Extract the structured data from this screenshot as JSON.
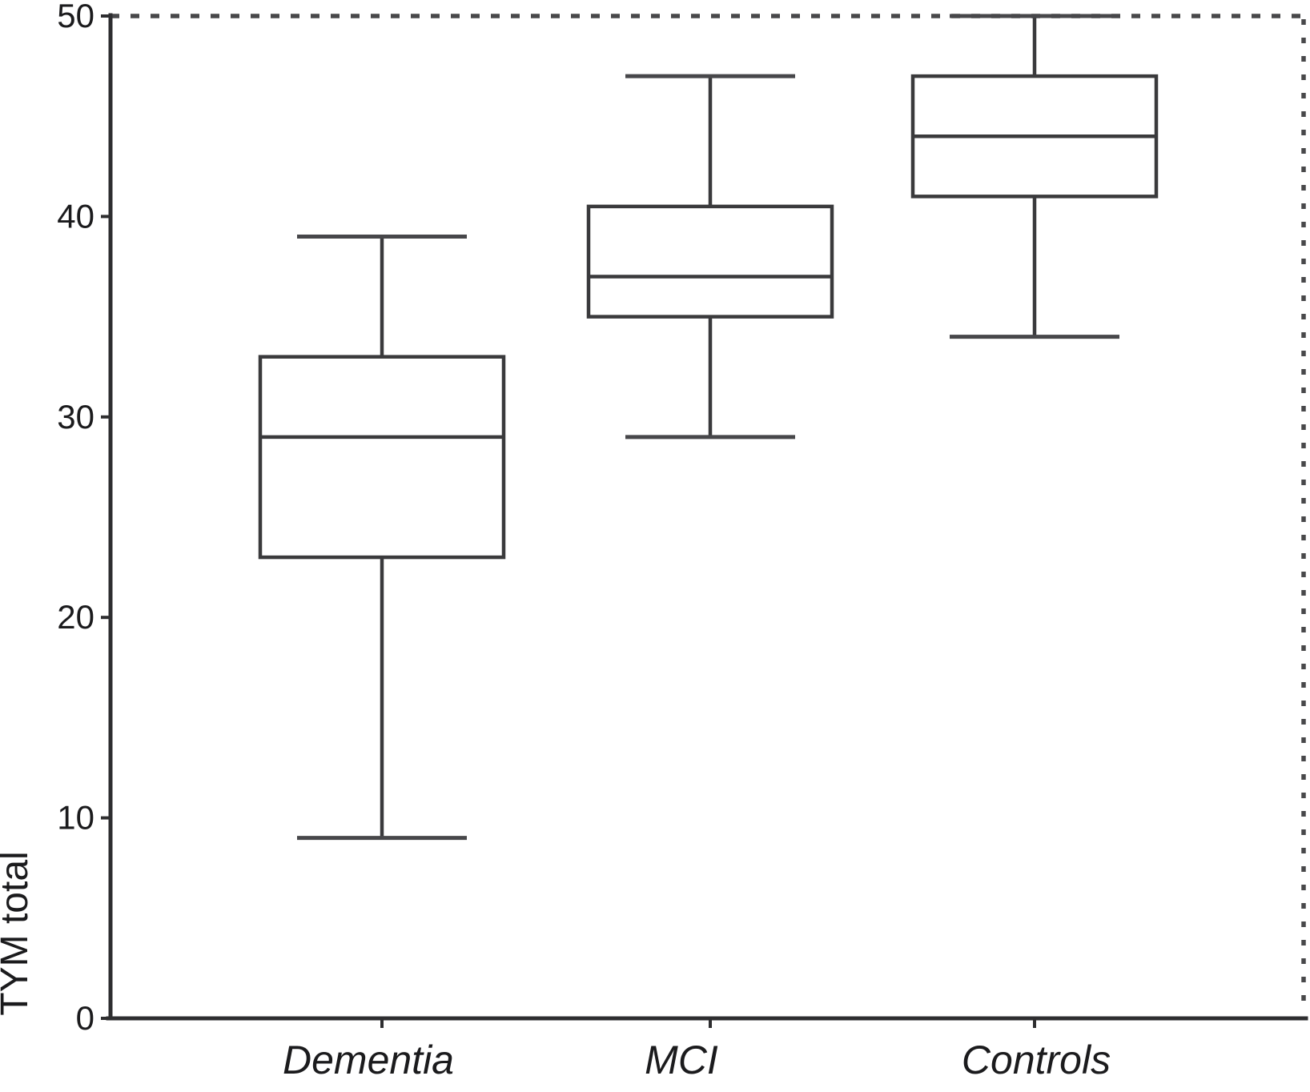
{
  "chart_data": {
    "type": "boxplot",
    "title": "",
    "ylabel": "TYM total",
    "xlabel": "",
    "ylim": [
      0,
      50
    ],
    "yticks": [
      0,
      10,
      20,
      30,
      40,
      50
    ],
    "categories": [
      "Dementia",
      "MCI",
      "Controls"
    ],
    "series": [
      {
        "name": "Dementia",
        "whisker_low": 9,
        "q1": 23,
        "median": 29,
        "q3": 33,
        "whisker_high": 39
      },
      {
        "name": "MCI",
        "whisker_low": 29,
        "q1": 35,
        "median": 37,
        "q3": 40.5,
        "whisker_high": 47
      },
      {
        "name": "Controls",
        "whisker_low": 34,
        "q1": 41,
        "median": 44,
        "q3": 47,
        "whisker_high": 50
      }
    ],
    "grid": false,
    "legend": null,
    "layout_hints": {
      "top_border": "dashed",
      "right_border": "dashed",
      "left_axis": "solid",
      "bottom_axis": "solid"
    },
    "colors": {
      "line": "#3a3a3c",
      "axis": "#2e2e30",
      "dashed_border": "#48484a",
      "text": "#1b1b1d",
      "background": "#ffffff"
    }
  }
}
